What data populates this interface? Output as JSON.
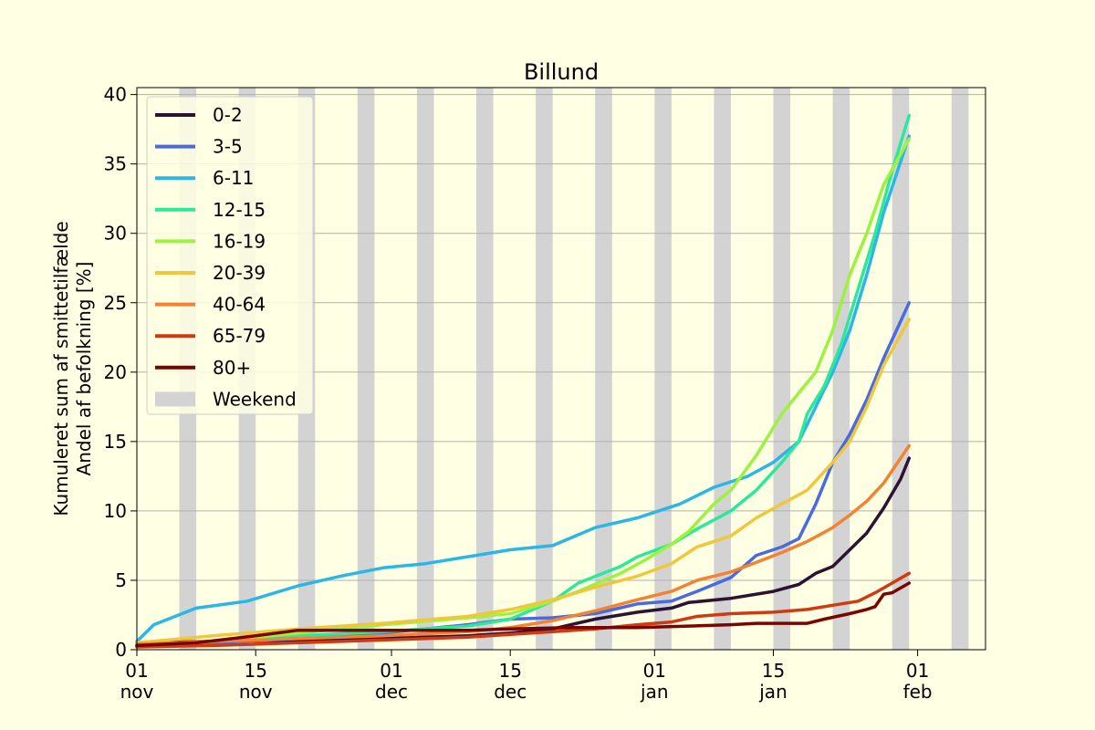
{
  "chart_data": {
    "type": "line",
    "title": "Billund",
    "ylabel_line1": "Kumuleret sum af smittetilfælde",
    "ylabel_line2": "Andel af befolkning [%]",
    "xlabel": "",
    "ylim": [
      0,
      40.5
    ],
    "yticks": [
      0,
      5,
      10,
      15,
      20,
      25,
      30,
      35,
      40
    ],
    "xlim": [
      "2021-11-01",
      "2022-02-09"
    ],
    "xticks": [
      {
        "date": "2021-11-01",
        "day": "01",
        "month": "nov"
      },
      {
        "date": "2021-11-15",
        "day": "15",
        "month": "nov"
      },
      {
        "date": "2021-12-01",
        "day": "01",
        "month": "dec"
      },
      {
        "date": "2021-12-15",
        "day": "15",
        "month": "dec"
      },
      {
        "date": "2022-01-01",
        "day": "01",
        "month": "jan"
      },
      {
        "date": "2022-01-15",
        "day": "15",
        "month": "jan"
      },
      {
        "date": "2022-02-01",
        "day": "01",
        "month": "feb"
      }
    ],
    "grid": "horizontal",
    "legend_position": "top-left",
    "weekend_label": "Weekend",
    "weekend_color": "#d3d3d3",
    "weekends": [
      "2021-11-06",
      "2021-11-13",
      "2021-11-20",
      "2021-11-27",
      "2021-12-04",
      "2021-12-11",
      "2021-12-18",
      "2021-12-25",
      "2022-01-01",
      "2022-01-08",
      "2022-01-15",
      "2022-01-22",
      "2022-01-29",
      "2022-02-05"
    ],
    "series": [
      {
        "name": "0-2",
        "color": "#2d1234",
        "points": [
          [
            "2021-11-01",
            0.5
          ],
          [
            "2021-11-10",
            0.6
          ],
          [
            "2021-11-20",
            0.7
          ],
          [
            "2021-11-30",
            0.8
          ],
          [
            "2021-12-10",
            1.0
          ],
          [
            "2021-12-15",
            1.2
          ],
          [
            "2021-12-20",
            1.5
          ],
          [
            "2021-12-25",
            2.2
          ],
          [
            "2021-12-30",
            2.7
          ],
          [
            "2022-01-03",
            3.0
          ],
          [
            "2022-01-05",
            3.4
          ],
          [
            "2022-01-10",
            3.7
          ],
          [
            "2022-01-15",
            4.2
          ],
          [
            "2022-01-18",
            4.7
          ],
          [
            "2022-01-20",
            5.5
          ],
          [
            "2022-01-22",
            6.0
          ],
          [
            "2022-01-24",
            7.2
          ],
          [
            "2022-01-26",
            8.4
          ],
          [
            "2022-01-28",
            10.2
          ],
          [
            "2022-01-30",
            12.3
          ],
          [
            "2022-01-31",
            13.8
          ]
        ]
      },
      {
        "name": "3-5",
        "color": "#4a6ae0",
        "points": [
          [
            "2021-11-01",
            0.3
          ],
          [
            "2021-11-10",
            0.5
          ],
          [
            "2021-11-20",
            0.8
          ],
          [
            "2021-11-30",
            1.2
          ],
          [
            "2021-12-10",
            1.8
          ],
          [
            "2021-12-15",
            2.2
          ],
          [
            "2021-12-20",
            2.3
          ],
          [
            "2021-12-25",
            2.6
          ],
          [
            "2021-12-30",
            3.3
          ],
          [
            "2022-01-03",
            3.5
          ],
          [
            "2022-01-06",
            4.2
          ],
          [
            "2022-01-10",
            5.2
          ],
          [
            "2022-01-13",
            6.8
          ],
          [
            "2022-01-16",
            7.4
          ],
          [
            "2022-01-18",
            8.0
          ],
          [
            "2022-01-20",
            10.5
          ],
          [
            "2022-01-22",
            13.5
          ],
          [
            "2022-01-24",
            15.5
          ],
          [
            "2022-01-26",
            18.0
          ],
          [
            "2022-01-28",
            21.0
          ],
          [
            "2022-01-31",
            25.0
          ]
        ]
      },
      {
        "name": "6-11",
        "color": "#2bb6e6",
        "points": [
          [
            "2021-11-01",
            0.6
          ],
          [
            "2021-11-03",
            1.8
          ],
          [
            "2021-11-08",
            3.0
          ],
          [
            "2021-11-14",
            3.5
          ],
          [
            "2021-11-20",
            4.6
          ],
          [
            "2021-11-25",
            5.3
          ],
          [
            "2021-11-30",
            5.9
          ],
          [
            "2021-12-05",
            6.2
          ],
          [
            "2021-12-10",
            6.7
          ],
          [
            "2021-12-15",
            7.2
          ],
          [
            "2021-12-20",
            7.5
          ],
          [
            "2021-12-25",
            8.8
          ],
          [
            "2021-12-30",
            9.5
          ],
          [
            "2022-01-04",
            10.5
          ],
          [
            "2022-01-08",
            11.7
          ],
          [
            "2022-01-12",
            12.5
          ],
          [
            "2022-01-15",
            13.5
          ],
          [
            "2022-01-18",
            15.0
          ],
          [
            "2022-01-20",
            17.5
          ],
          [
            "2022-01-22",
            20.0
          ],
          [
            "2022-01-24",
            23.0
          ],
          [
            "2022-01-26",
            27.0
          ],
          [
            "2022-01-28",
            31.5
          ],
          [
            "2022-01-31",
            37.0
          ]
        ]
      },
      {
        "name": "12-15",
        "color": "#2de89b",
        "points": [
          [
            "2021-11-01",
            0.3
          ],
          [
            "2021-11-10",
            0.6
          ],
          [
            "2021-11-20",
            1.0
          ],
          [
            "2021-11-30",
            1.3
          ],
          [
            "2021-12-10",
            1.7
          ],
          [
            "2021-12-15",
            2.2
          ],
          [
            "2021-12-20",
            3.5
          ],
          [
            "2021-12-23",
            4.8
          ],
          [
            "2021-12-28",
            6.0
          ],
          [
            "2021-12-30",
            6.7
          ],
          [
            "2022-01-03",
            7.6
          ],
          [
            "2022-01-06",
            8.7
          ],
          [
            "2022-01-10",
            10.0
          ],
          [
            "2022-01-13",
            11.5
          ],
          [
            "2022-01-16",
            13.5
          ],
          [
            "2022-01-18",
            15.0
          ],
          [
            "2022-01-19",
            17.0
          ],
          [
            "2022-01-21",
            19.0
          ],
          [
            "2022-01-23",
            22.0
          ],
          [
            "2022-01-25",
            26.0
          ],
          [
            "2022-01-27",
            30.0
          ],
          [
            "2022-01-29",
            34.5
          ],
          [
            "2022-01-31",
            38.5
          ]
        ]
      },
      {
        "name": "16-19",
        "color": "#9cf23e",
        "points": [
          [
            "2021-11-01",
            0.2
          ],
          [
            "2021-11-10",
            0.6
          ],
          [
            "2021-11-20",
            1.2
          ],
          [
            "2021-11-30",
            1.8
          ],
          [
            "2021-12-10",
            2.3
          ],
          [
            "2021-12-15",
            2.6
          ],
          [
            "2021-12-20",
            3.5
          ],
          [
            "2021-12-23",
            4.2
          ],
          [
            "2021-12-28",
            5.5
          ],
          [
            "2021-12-31",
            6.5
          ],
          [
            "2022-01-03",
            7.6
          ],
          [
            "2022-01-05",
            8.5
          ],
          [
            "2022-01-08",
            10.5
          ],
          [
            "2022-01-10",
            11.5
          ],
          [
            "2022-01-13",
            14.0
          ],
          [
            "2022-01-16",
            17.0
          ],
          [
            "2022-01-18",
            18.5
          ],
          [
            "2022-01-20",
            20.0
          ],
          [
            "2022-01-22",
            23.0
          ],
          [
            "2022-01-24",
            27.0
          ],
          [
            "2022-01-26",
            30.0
          ],
          [
            "2022-01-28",
            33.5
          ],
          [
            "2022-01-31",
            36.8
          ]
        ]
      },
      {
        "name": "20-39",
        "color": "#efc73a",
        "points": [
          [
            "2021-11-01",
            0.5
          ],
          [
            "2021-11-10",
            1.0
          ],
          [
            "2021-11-20",
            1.5
          ],
          [
            "2021-11-30",
            1.9
          ],
          [
            "2021-12-10",
            2.4
          ],
          [
            "2021-12-15",
            2.9
          ],
          [
            "2021-12-20",
            3.6
          ],
          [
            "2021-12-25",
            4.5
          ],
          [
            "2021-12-30",
            5.3
          ],
          [
            "2022-01-03",
            6.2
          ],
          [
            "2022-01-06",
            7.4
          ],
          [
            "2022-01-10",
            8.2
          ],
          [
            "2022-01-13",
            9.5
          ],
          [
            "2022-01-16",
            10.5
          ],
          [
            "2022-01-19",
            11.5
          ],
          [
            "2022-01-22",
            13.5
          ],
          [
            "2022-01-24",
            15.0
          ],
          [
            "2022-01-26",
            17.5
          ],
          [
            "2022-01-28",
            20.5
          ],
          [
            "2022-01-31",
            23.8
          ]
        ]
      },
      {
        "name": "40-64",
        "color": "#f58233",
        "points": [
          [
            "2021-11-01",
            0.4
          ],
          [
            "2021-11-10",
            0.6
          ],
          [
            "2021-11-20",
            0.8
          ],
          [
            "2021-11-30",
            1.0
          ],
          [
            "2021-12-10",
            1.3
          ],
          [
            "2021-12-15",
            1.6
          ],
          [
            "2021-12-20",
            2.1
          ],
          [
            "2021-12-25",
            2.8
          ],
          [
            "2021-12-30",
            3.6
          ],
          [
            "2022-01-03",
            4.2
          ],
          [
            "2022-01-06",
            5.0
          ],
          [
            "2022-01-10",
            5.6
          ],
          [
            "2022-01-13",
            6.3
          ],
          [
            "2022-01-16",
            7.0
          ],
          [
            "2022-01-19",
            7.8
          ],
          [
            "2022-01-22",
            8.8
          ],
          [
            "2022-01-24",
            9.7
          ],
          [
            "2022-01-26",
            10.7
          ],
          [
            "2022-01-28",
            12.0
          ],
          [
            "2022-01-31",
            14.7
          ]
        ]
      },
      {
        "name": "65-79",
        "color": "#cf3a12",
        "points": [
          [
            "2021-11-01",
            0.2
          ],
          [
            "2021-11-10",
            0.3
          ],
          [
            "2021-11-20",
            0.5
          ],
          [
            "2021-11-30",
            0.7
          ],
          [
            "2021-12-10",
            0.9
          ],
          [
            "2021-12-15",
            1.1
          ],
          [
            "2021-12-20",
            1.3
          ],
          [
            "2021-12-25",
            1.5
          ],
          [
            "2021-12-30",
            1.8
          ],
          [
            "2022-01-03",
            2.0
          ],
          [
            "2022-01-06",
            2.4
          ],
          [
            "2022-01-10",
            2.6
          ],
          [
            "2022-01-15",
            2.7
          ],
          [
            "2022-01-19",
            2.9
          ],
          [
            "2022-01-22",
            3.2
          ],
          [
            "2022-01-25",
            3.5
          ],
          [
            "2022-01-27",
            4.1
          ],
          [
            "2022-01-29",
            4.8
          ],
          [
            "2022-01-31",
            5.5
          ]
        ]
      },
      {
        "name": "80+",
        "color": "#7a0402",
        "points": [
          [
            "2021-11-01",
            0.3
          ],
          [
            "2021-11-08",
            0.5
          ],
          [
            "2021-11-15",
            1.0
          ],
          [
            "2021-11-20",
            1.4
          ],
          [
            "2021-11-30",
            1.4
          ],
          [
            "2021-12-10",
            1.4
          ],
          [
            "2021-12-15",
            1.5
          ],
          [
            "2021-12-22",
            1.6
          ],
          [
            "2021-12-30",
            1.6
          ],
          [
            "2022-01-05",
            1.7
          ],
          [
            "2022-01-10",
            1.8
          ],
          [
            "2022-01-13",
            1.9
          ],
          [
            "2022-01-19",
            1.9
          ],
          [
            "2022-01-21",
            2.2
          ],
          [
            "2022-01-24",
            2.6
          ],
          [
            "2022-01-26",
            2.9
          ],
          [
            "2022-01-27",
            3.1
          ],
          [
            "2022-01-28",
            4.0
          ],
          [
            "2022-01-29",
            4.1
          ],
          [
            "2022-01-31",
            4.8
          ]
        ]
      }
    ]
  }
}
